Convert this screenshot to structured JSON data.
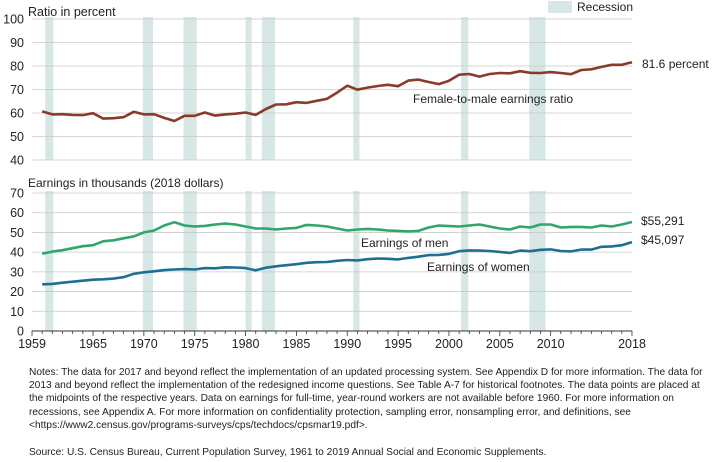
{
  "colors": {
    "recession": "#d6e7e6",
    "grid": "#c9c9c9",
    "ratio": "#8b3a2a",
    "men": "#2fa66b",
    "women": "#1f6f93"
  },
  "notes": "Notes: The data for 2017 and beyond reflect the implementation of an updated processing system. See Appendix D for more information. The data for 2013 and beyond reflect the implementation of the redesigned income questions. See Table A-7 for historical footnotes. The data points are placed at the midpoints of the respective years. Data on earnings for full-time, year-round workers are not available before 1960. For more information on recessions, see Appendix A. For more information on confidentiality protection, sampling error, nonsampling error, and definitions, see <https://www2.census.gov/programs-surveys/cps/techdocs/cpsmar19.pdf>.",
  "source": "Source: U.S. Census Bureau, Current Population Survey, 1961 to 2019 Annual Social and Economic Supplements.",
  "chart_data": [
    {
      "type": "line",
      "ylabel": "Ratio in percent",
      "ylim": [
        40,
        100
      ],
      "yticks": [
        40,
        50,
        60,
        70,
        80,
        90,
        100
      ],
      "xlim": [
        1959,
        2018
      ],
      "grid": true,
      "legend": {
        "swatch_label": "Recession"
      },
      "recessions": [
        [
          1960.3,
          1961.1
        ],
        [
          1969.9,
          1970.9
        ],
        [
          1973.9,
          1975.2
        ],
        [
          1980.0,
          1980.6
        ],
        [
          1981.6,
          1982.9
        ],
        [
          1990.6,
          1991.2
        ],
        [
          2001.2,
          2001.9
        ],
        [
          2007.9,
          2009.5
        ]
      ],
      "x": [
        1960,
        1961,
        1962,
        1963,
        1964,
        1965,
        1966,
        1967,
        1968,
        1969,
        1970,
        1971,
        1972,
        1973,
        1974,
        1975,
        1976,
        1977,
        1978,
        1979,
        1980,
        1981,
        1982,
        1983,
        1984,
        1985,
        1986,
        1987,
        1988,
        1989,
        1990,
        1991,
        1992,
        1993,
        1994,
        1995,
        1996,
        1997,
        1998,
        1999,
        2000,
        2001,
        2002,
        2003,
        2004,
        2005,
        2006,
        2007,
        2008,
        2009,
        2010,
        2011,
        2012,
        2013,
        2014,
        2015,
        2016,
        2017,
        2018
      ],
      "series": [
        {
          "name": "Female-to-male earnings ratio",
          "end_label": "81.6 percent",
          "values": [
            60.7,
            59.4,
            59.5,
            59.2,
            59.1,
            59.9,
            57.6,
            57.8,
            58.2,
            60.5,
            59.4,
            59.5,
            57.9,
            56.6,
            58.8,
            58.8,
            60.2,
            58.9,
            59.4,
            59.7,
            60.2,
            59.2,
            61.7,
            63.6,
            63.7,
            64.6,
            64.3,
            65.2,
            66.0,
            68.7,
            71.6,
            69.9,
            70.8,
            71.5,
            72.0,
            71.4,
            73.8,
            74.2,
            73.2,
            72.3,
            73.7,
            76.3,
            76.6,
            75.5,
            76.6,
            77.0,
            76.9,
            77.8,
            77.1,
            77.0,
            77.4,
            77.0,
            76.5,
            78.3,
            78.6,
            79.6,
            80.5,
            80.5,
            81.6
          ]
        }
      ]
    },
    {
      "type": "line",
      "ylabel": "Earnings in thousands (2018 dollars)",
      "ylim": [
        0,
        70
      ],
      "yticks": [
        0,
        10,
        20,
        30,
        40,
        50,
        60,
        70
      ],
      "xlim": [
        1959,
        2018
      ],
      "xticks": [
        1959,
        1965,
        1970,
        1975,
        1980,
        1985,
        1990,
        1995,
        2000,
        2005,
        2010,
        2018
      ],
      "grid": true,
      "recessions": [
        [
          1960.3,
          1961.1
        ],
        [
          1969.9,
          1970.9
        ],
        [
          1973.9,
          1975.2
        ],
        [
          1980.0,
          1980.6
        ],
        [
          1981.6,
          1982.9
        ],
        [
          1990.6,
          1991.2
        ],
        [
          2001.2,
          2001.9
        ],
        [
          2007.9,
          2009.5
        ]
      ],
      "x": [
        1960,
        1961,
        1962,
        1963,
        1964,
        1965,
        1966,
        1967,
        1968,
        1969,
        1970,
        1971,
        1972,
        1973,
        1974,
        1975,
        1976,
        1977,
        1978,
        1979,
        1980,
        1981,
        1982,
        1983,
        1984,
        1985,
        1986,
        1987,
        1988,
        1989,
        1990,
        1991,
        1992,
        1993,
        1994,
        1995,
        1996,
        1997,
        1998,
        1999,
        2000,
        2001,
        2002,
        2003,
        2004,
        2005,
        2006,
        2007,
        2008,
        2009,
        2010,
        2011,
        2012,
        2013,
        2014,
        2015,
        2016,
        2017,
        2018
      ],
      "series": [
        {
          "name": "Earnings of men",
          "end_label": "$55,291",
          "values": [
            39.2,
            40.3,
            41.0,
            42.0,
            43.0,
            43.5,
            45.5,
            46.0,
            47.0,
            48.0,
            50.0,
            51.0,
            53.5,
            55.2,
            53.5,
            53.0,
            53.3,
            54.0,
            54.5,
            54.0,
            53.0,
            52.0,
            52.0,
            51.5,
            52.0,
            52.3,
            53.8,
            53.5,
            53.0,
            52.0,
            51.0,
            51.5,
            51.8,
            51.5,
            51.0,
            50.8,
            50.5,
            50.8,
            52.5,
            53.5,
            53.2,
            53.0,
            53.5,
            54.0,
            53.0,
            52.0,
            51.5,
            53.0,
            52.5,
            54.0,
            54.0,
            52.5,
            52.8,
            52.8,
            52.5,
            53.5,
            53.0,
            54.0,
            55.3
          ]
        },
        {
          "name": "Earnings of women",
          "end_label": "$45,097",
          "values": [
            23.7,
            23.9,
            24.5,
            25.0,
            25.5,
            26.0,
            26.2,
            26.6,
            27.3,
            29.0,
            29.8,
            30.3,
            30.9,
            31.2,
            31.4,
            31.2,
            31.9,
            31.8,
            32.3,
            32.2,
            31.9,
            30.8,
            32.1,
            32.8,
            33.4,
            33.9,
            34.6,
            34.9,
            35.0,
            35.6,
            36.0,
            35.8,
            36.4,
            36.8,
            36.6,
            36.3,
            37.1,
            37.7,
            38.5,
            38.6,
            39.1,
            40.5,
            40.9,
            40.8,
            40.6,
            40.1,
            39.6,
            40.8,
            40.5,
            41.2,
            41.4,
            40.6,
            40.4,
            41.3,
            41.3,
            42.7,
            42.9,
            43.5,
            45.1
          ]
        }
      ]
    }
  ]
}
